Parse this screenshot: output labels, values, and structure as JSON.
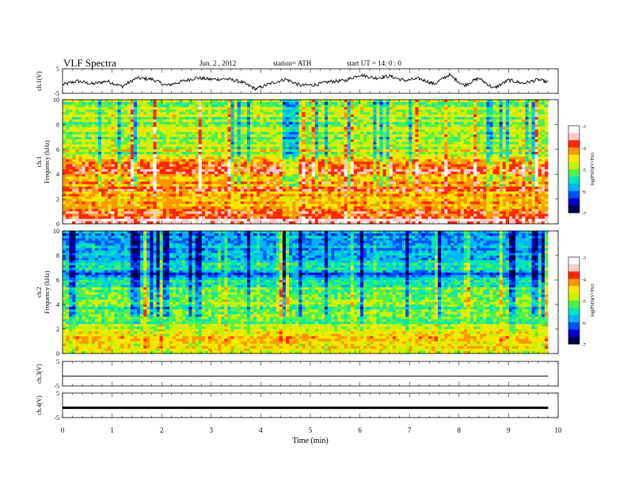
{
  "header": {
    "title": "VLF  Spectra",
    "date": "Jun. 2  , 2012",
    "station": "station= ATH",
    "start": "start  UT  =   14: 0  : 0"
  },
  "colors": {
    "scale": [
      "#00004a",
      "#0000c8",
      "#0050ff",
      "#00b4ff",
      "#00e6b4",
      "#50f050",
      "#c8f000",
      "#ffe600",
      "#ff9600",
      "#ff2800",
      "#ffc8c8",
      "#ffffff"
    ],
    "trace": "#000000",
    "frame": "#000000"
  },
  "chart_data": [
    {
      "type": "line",
      "ylabel": "ch.1(V)",
      "yticks": [
        "5",
        "-5"
      ],
      "ylim": [
        -5,
        5
      ],
      "xlim": [
        0,
        10
      ],
      "series": [
        {
          "x": [
            0,
            0.3,
            0.6,
            0.9,
            1.2,
            1.5,
            1.8,
            2.1,
            2.4,
            2.7,
            3.0,
            3.3,
            3.6,
            3.9,
            4.2,
            4.5,
            4.8,
            5.1,
            5.4,
            5.7,
            6.0,
            6.3,
            6.6,
            6.9,
            7.2,
            7.5,
            7.8,
            8.1,
            8.4,
            8.7,
            9.0,
            9.3,
            9.6,
            9.8
          ],
          "y": [
            -1.5,
            0,
            -1.2,
            0,
            -2.2,
            1.2,
            0.8,
            -1.8,
            -0.2,
            1.3,
            0.7,
            0.9,
            -0.3,
            -3.2,
            -1.0,
            0.8,
            -1.8,
            -1.5,
            -0.2,
            0.2,
            2.6,
            1.2,
            2.0,
            0.2,
            1.0,
            -1.2,
            2.6,
            -1.8,
            1.2,
            -3.0,
            0.4,
            -0.9,
            0.6,
            -0.5
          ]
        }
      ]
    },
    {
      "type": "heatmap",
      "ylabel": "ch.1\nFrequency  (kHz)",
      "yticks": [
        "10",
        "8",
        "6",
        "4",
        "2",
        "0"
      ],
      "ylim": [
        0,
        10
      ],
      "xlim": [
        0,
        10
      ],
      "colorbar": {
        "label": "log(PSD)(V²/Hz)",
        "range": [
          -7,
          -3
        ],
        "ticks": [
          "-3",
          "-4",
          "-5",
          "-6",
          "-7"
        ]
      },
      "freq_profile_khz": [
        [
          0,
          -3.3
        ],
        [
          0.5,
          -3.6
        ],
        [
          1.5,
          -4.2
        ],
        [
          2.5,
          -4.0
        ],
        [
          3.5,
          -4.3
        ],
        [
          4.5,
          -3.9
        ],
        [
          5.0,
          -4.1
        ],
        [
          5.5,
          -4.8
        ],
        [
          6.0,
          -4.7
        ],
        [
          6.5,
          -5.0
        ],
        [
          7.0,
          -4.9
        ],
        [
          8.0,
          -5.0
        ],
        [
          9.0,
          -4.8
        ],
        [
          10,
          -5.1
        ]
      ]
    },
    {
      "type": "heatmap",
      "ylabel": "ch.2\nFrequency  (kHz)",
      "yticks": [
        "10",
        "8",
        "6",
        "4",
        "2",
        "0"
      ],
      "ylim": [
        0,
        10
      ],
      "xlim": [
        0,
        10
      ],
      "colorbar": {
        "label": "log(PSD)(V²/Hz)",
        "range": [
          -7,
          -3
        ],
        "ticks": [
          "-3",
          "-4",
          "-5",
          "-6",
          "-7"
        ]
      },
      "freq_profile_khz": [
        [
          0,
          -4.6
        ],
        [
          1.0,
          -4.3
        ],
        [
          2.0,
          -4.8
        ],
        [
          3.0,
          -5.3
        ],
        [
          4.0,
          -5.1
        ],
        [
          5.0,
          -5.0
        ],
        [
          6.0,
          -5.7
        ],
        [
          6.5,
          -6.1
        ],
        [
          7.0,
          -5.6
        ],
        [
          8.0,
          -5.8
        ],
        [
          9.0,
          -5.9
        ],
        [
          10,
          -6.0
        ]
      ]
    },
    {
      "type": "line",
      "ylabel": "ch.3(V)",
      "yticks": [
        "5",
        "-5"
      ],
      "ylim": [
        -5,
        5
      ],
      "xlim": [
        0,
        10
      ],
      "series": [
        {
          "x": [
            0,
            9.8
          ],
          "y": [
            -1,
            -1
          ]
        }
      ]
    },
    {
      "type": "line",
      "ylabel": "ch.4(V)",
      "yticks": [
        "5",
        "-5"
      ],
      "ylim": [
        -5,
        5
      ],
      "xlim": [
        0,
        10
      ],
      "series": [
        {
          "x": [
            0,
            9.8
          ],
          "y": [
            -1,
            -1
          ]
        }
      ]
    }
  ],
  "xaxis": {
    "label": "Time  (min)",
    "ticks": [
      "0",
      "1",
      "2",
      "3",
      "4",
      "5",
      "6",
      "7",
      "8",
      "9",
      "10"
    ]
  }
}
